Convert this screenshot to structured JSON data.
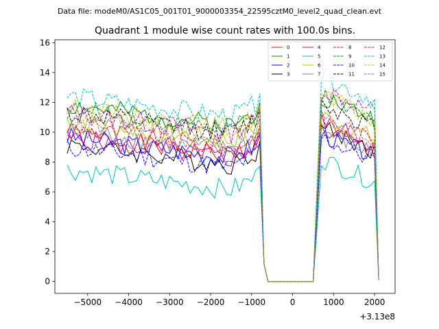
{
  "header": "Data file: modeM0/AS1C05_001T01_9000003354_22595cztM0_level2_quad_clean.evt",
  "chart_data": {
    "type": "line",
    "title": "Quadrant 1 module wise count rates with 100.0s bins.",
    "xlabel": "",
    "ylabel": "",
    "x_offset_label": "+3.13e8",
    "xlim": [
      -5800,
      2500
    ],
    "ylim": [
      -0.8,
      16.2
    ],
    "xticks": [
      -5000,
      -4000,
      -3000,
      -2000,
      -1000,
      0,
      1000,
      2000
    ],
    "yticks": [
      0,
      2,
      4,
      6,
      8,
      10,
      12,
      14,
      16
    ],
    "x_segments": [
      {
        "start": -5500,
        "end": -800,
        "step": 100
      },
      {
        "start": -700,
        "end": 500,
        "step": 100
      },
      {
        "start": 600,
        "end": 2100,
        "step": 100
      }
    ],
    "legend_position": "top-right",
    "series": [
      {
        "name": "0",
        "color": "#ff0000",
        "dash": "solid",
        "level": 8.6,
        "post": 8.9,
        "seed": 1
      },
      {
        "name": "1",
        "color": "#008000",
        "dash": "solid",
        "level": 10.6,
        "post": 11.1,
        "seed": 2
      },
      {
        "name": "2",
        "color": "#0000ff",
        "dash": "solid",
        "level": 8.5,
        "post": 8.6,
        "seed": 3
      },
      {
        "name": "3",
        "color": "#000000",
        "dash": "solid",
        "level": 8.0,
        "post": 9.0,
        "seed": 4
      },
      {
        "name": "4",
        "color": "#bf00bf",
        "dash": "solid",
        "level": 8.4,
        "post": 9.4,
        "seed": 5
      },
      {
        "name": "5",
        "color": "#00bfbf",
        "dash": "solid",
        "level": 6.3,
        "post": 6.9,
        "seed": 6
      },
      {
        "name": "6",
        "color": "#bfbf00",
        "dash": "solid",
        "level": 9.6,
        "post": 9.8,
        "seed": 7
      },
      {
        "name": "7",
        "color": "#808080",
        "dash": "solid",
        "level": 8.9,
        "post": 8.8,
        "seed": 8
      },
      {
        "name": "8",
        "color": "#ff0000",
        "dash": "dashed",
        "level": 9.1,
        "post": 9.6,
        "seed": 9
      },
      {
        "name": "9",
        "color": "#008000",
        "dash": "dashed",
        "level": 10.3,
        "post": 11.0,
        "seed": 10
      },
      {
        "name": "10",
        "color": "#0000ff",
        "dash": "dashed",
        "level": 7.8,
        "post": 8.3,
        "seed": 11
      },
      {
        "name": "11",
        "color": "#000000",
        "dash": "dashed",
        "level": 10.1,
        "post": 10.6,
        "seed": 12
      },
      {
        "name": "12",
        "color": "#bf00bf",
        "dash": "dashed",
        "level": 10.1,
        "post": 11.6,
        "seed": 13
      },
      {
        "name": "13",
        "color": "#00bfbf",
        "dash": "dashed",
        "level": 11.2,
        "post": 12.4,
        "seed": 14
      },
      {
        "name": "14",
        "color": "#bfbf00",
        "dash": "dashed",
        "level": 10.4,
        "post": 11.1,
        "seed": 15
      },
      {
        "name": "15",
        "color": "#808080",
        "dash": "dashed",
        "level": 9.4,
        "post": 9.7,
        "seed": 16
      }
    ]
  }
}
